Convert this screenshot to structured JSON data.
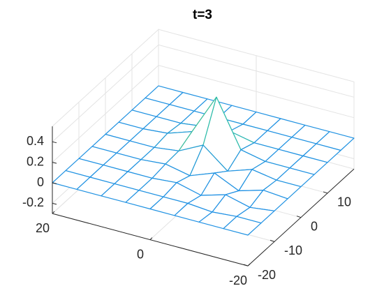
{
  "chart_data": {
    "type": "mesh",
    "title": "t=3",
    "x": [
      -20,
      -15,
      -10,
      -5,
      0,
      5,
      10,
      15,
      20
    ],
    "y": [
      -20,
      -15,
      -10,
      -5,
      0,
      5,
      10,
      15,
      20
    ],
    "z": [
      [
        0,
        0,
        0,
        0,
        0,
        0,
        0,
        0,
        0
      ],
      [
        0,
        0,
        -0.02,
        0,
        0,
        0,
        0,
        0,
        0
      ],
      [
        0,
        -0.03,
        0.03,
        -0.04,
        0.02,
        0,
        0,
        0,
        0
      ],
      [
        0,
        0.02,
        -0.05,
        0.06,
        -0.03,
        0.02,
        0,
        0,
        0
      ],
      [
        0,
        0,
        0.04,
        -0.04,
        0.15,
        0.03,
        0,
        0,
        0
      ],
      [
        0,
        0,
        0,
        0.05,
        0.5,
        0.1,
        0.02,
        0,
        0
      ],
      [
        0,
        0,
        0,
        0,
        0.05,
        0.03,
        0,
        0,
        0
      ],
      [
        0,
        0,
        0,
        0,
        0,
        0,
        0,
        0,
        0
      ],
      [
        0,
        0,
        0,
        0,
        0,
        0,
        0,
        0,
        0
      ]
    ],
    "xlim": [
      -20,
      20
    ],
    "xticks": [
      -20,
      0,
      20
    ],
    "ylim": [
      -20,
      20
    ],
    "yticks": [
      -20,
      -10,
      0,
      10
    ],
    "zlim": [
      -0.3,
      0.55
    ],
    "zticks": [
      -0.2,
      0,
      0.2,
      0.4
    ],
    "clim": [
      -0.2,
      0.55
    ],
    "colormap": [
      "#3e26a8",
      "#1f8fe6",
      "#2fbfa8",
      "#c9c129",
      "#f9fb0e"
    ],
    "grid": true
  }
}
